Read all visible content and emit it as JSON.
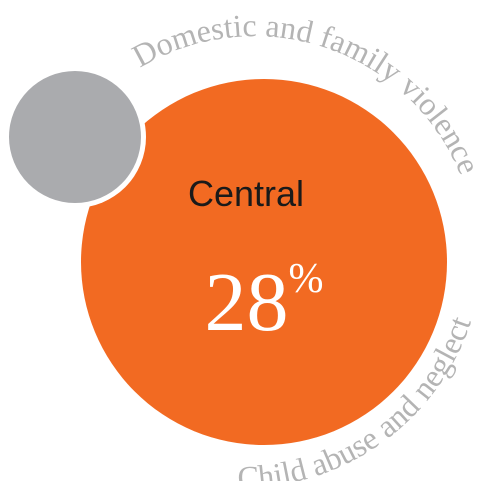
{
  "chart_data": {
    "type": "bubble",
    "region": "Central",
    "value": 28,
    "unit": "%",
    "arc_labels": {
      "upper": "Domestic and family violence",
      "lower": "Child abuse and neglect"
    },
    "colors": {
      "main_bubble": "#f26a22",
      "secondary_bubble": "#aaabae",
      "arc_text": "#b4b4b4",
      "region_text": "#1a1a1a",
      "value_text": "#ffffff"
    }
  }
}
